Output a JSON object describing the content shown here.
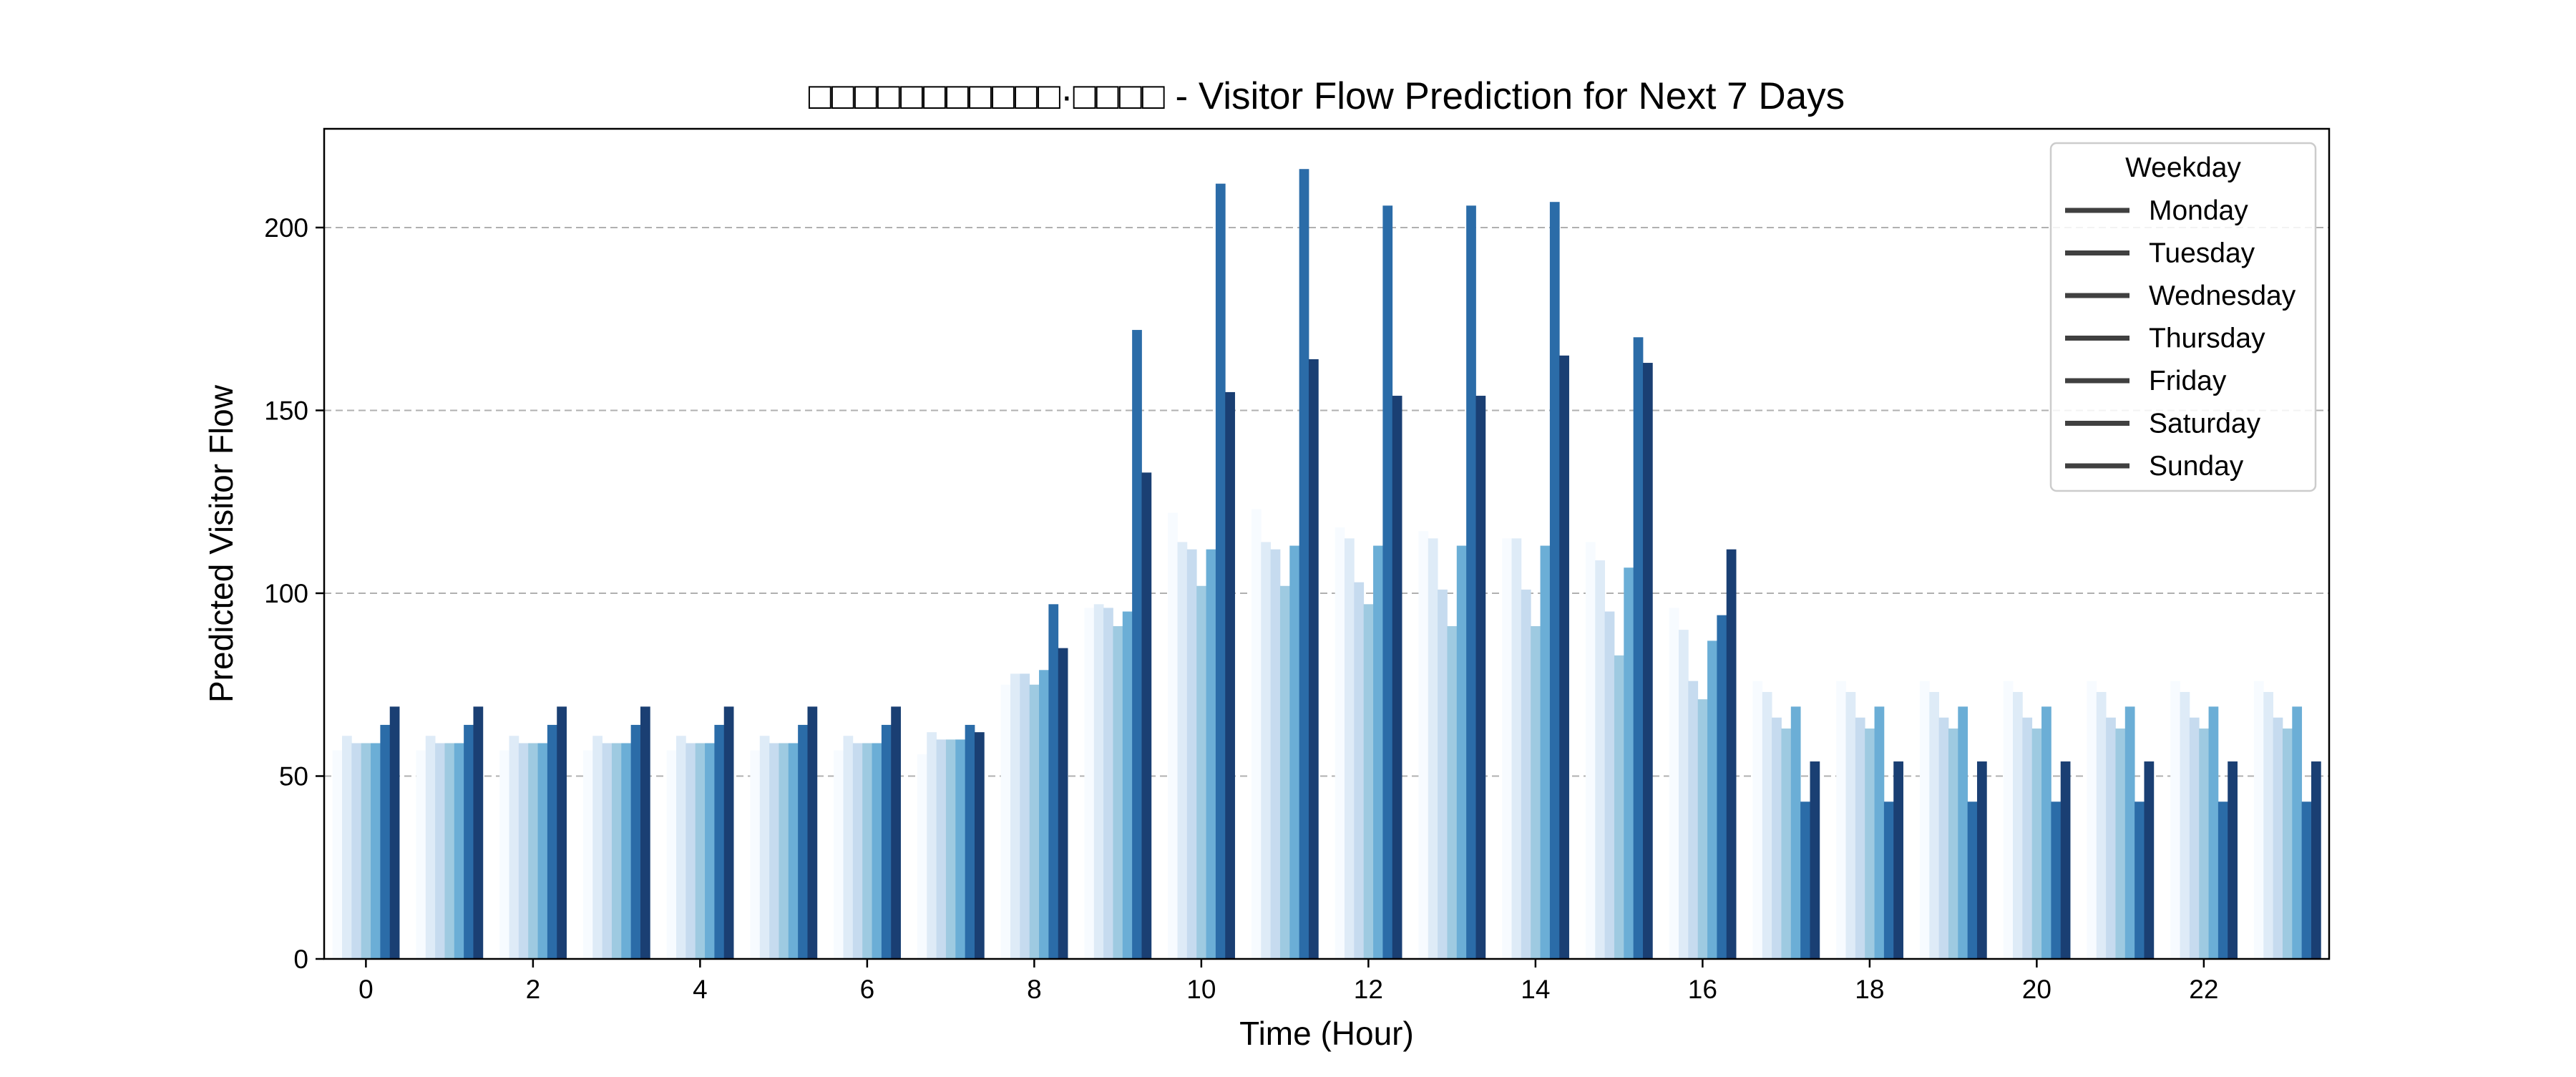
{
  "chart_data": {
    "type": "bar",
    "title": "□□□□□□□□□□□·□□□□ - Visitor Flow Prediction for Next 7 Days",
    "xlabel": "Time (Hour)",
    "ylabel": "Predicted Visitor Flow",
    "ylim": [
      0,
      227
    ],
    "xlim": [
      -0.5,
      23.5
    ],
    "x_ticks": [
      "0",
      "2",
      "4",
      "6",
      "8",
      "10",
      "12",
      "14",
      "16",
      "18",
      "20",
      "22"
    ],
    "y_ticks": [
      "0",
      "50",
      "100",
      "150",
      "200"
    ],
    "grid": "horizontal dashed",
    "legend": {
      "title": "Weekday",
      "position": "top-right",
      "entries": [
        "Monday",
        "Tuesday",
        "Wednesday",
        "Thursday",
        "Friday",
        "Saturday",
        "Sunday"
      ],
      "swatch_color": "#404040"
    },
    "categories": [
      "0",
      "1",
      "2",
      "3",
      "4",
      "5",
      "6",
      "7",
      "8",
      "9",
      "10",
      "11",
      "12",
      "13",
      "14",
      "15",
      "16",
      "17",
      "18",
      "19",
      "20",
      "21",
      "22",
      "23"
    ],
    "series_note": "seven bars per hour, light to dark",
    "series": [
      {
        "color": "#f7fbff",
        "values": [
          57,
          57,
          57,
          57,
          57,
          57,
          57,
          56,
          75,
          96,
          122,
          123,
          118,
          117,
          115,
          114,
          96,
          76,
          76,
          76,
          76,
          76,
          76,
          76
        ]
      },
      {
        "color": "#deebf7",
        "values": [
          61,
          61,
          61,
          61,
          61,
          61,
          61,
          62,
          78,
          97,
          114,
          114,
          115,
          115,
          115,
          109,
          90,
          73,
          73,
          73,
          73,
          73,
          73,
          73
        ]
      },
      {
        "color": "#c6dbef",
        "values": [
          59,
          59,
          59,
          59,
          59,
          59,
          59,
          60,
          78,
          96,
          112,
          112,
          103,
          101,
          101,
          95,
          76,
          66,
          66,
          66,
          66,
          66,
          66,
          66
        ]
      },
      {
        "color": "#9ecae1",
        "values": [
          59,
          59,
          59,
          59,
          59,
          59,
          59,
          60,
          75,
          91,
          102,
          102,
          97,
          91,
          91,
          83,
          71,
          63,
          63,
          63,
          63,
          63,
          63,
          63
        ]
      },
      {
        "color": "#6baed6",
        "values": [
          59,
          59,
          59,
          59,
          59,
          59,
          59,
          60,
          79,
          95,
          112,
          113,
          113,
          113,
          113,
          107,
          87,
          69,
          69,
          69,
          69,
          69,
          69,
          69
        ]
      },
      {
        "color": "#2b6ca8",
        "values": [
          64,
          64,
          64,
          64,
          64,
          64,
          64,
          64,
          97,
          172,
          212,
          216,
          206,
          206,
          207,
          170,
          94,
          43,
          43,
          43,
          43,
          43,
          43,
          43
        ]
      },
      {
        "color": "#1a3f73",
        "values": [
          69,
          69,
          69,
          69,
          69,
          69,
          69,
          62,
          85,
          133,
          155,
          164,
          154,
          154,
          165,
          163,
          112,
          54,
          54,
          54,
          54,
          54,
          54,
          54
        ]
      }
    ]
  }
}
